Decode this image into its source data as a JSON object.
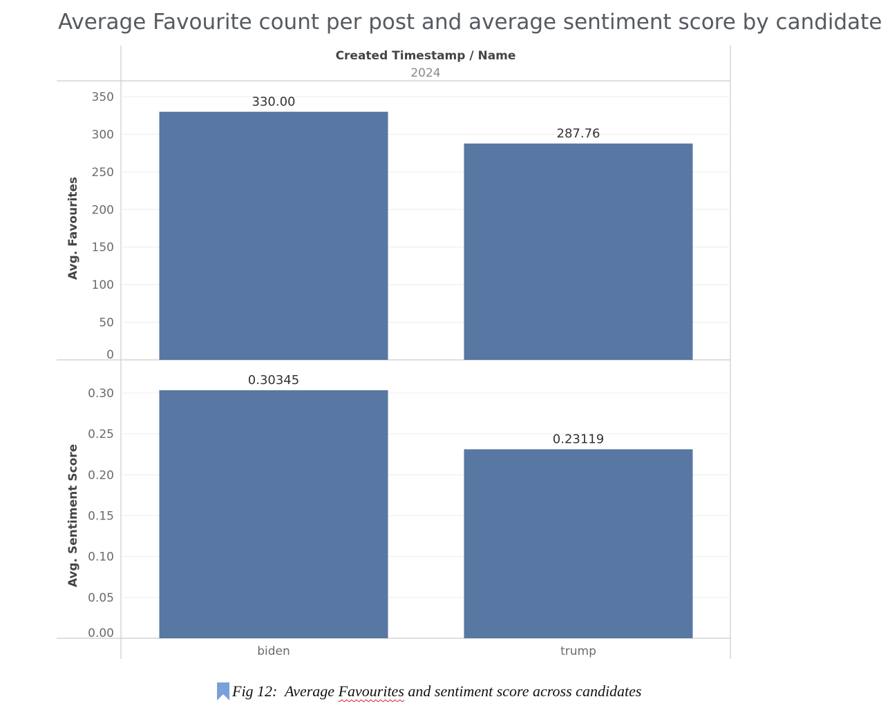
{
  "title": "Average Favourite count per post and average sentiment score by candidate",
  "header": {
    "line1": "Created Timestamp / Name",
    "line2": "2024"
  },
  "caption": {
    "prefix": "Fig 12:  Average ",
    "misspelled": "Favourites",
    "suffix": " and sentiment score across candidates"
  },
  "colors": {
    "bar": "#5877a2",
    "grid": "#ececec",
    "axis_line": "#cccccc",
    "tick_text": "#6b6b6b"
  },
  "chart_data": [
    {
      "type": "bar",
      "title": "Average Favourite count per post and average sentiment score by candidate",
      "categories": [
        "biden",
        "trump"
      ],
      "values": [
        330.0,
        287.76
      ],
      "value_labels": [
        "330.00",
        "287.76"
      ],
      "ylabel": "Avg. Favourites",
      "ylim": [
        0,
        350
      ],
      "yticks": [
        0,
        50,
        100,
        150,
        200,
        250,
        300,
        350
      ],
      "ytick_labels": [
        "0",
        "50",
        "100",
        "150",
        "200",
        "250",
        "300",
        "350"
      ],
      "grid": true
    },
    {
      "type": "bar",
      "title": "Average Favourite count per post and average sentiment score by candidate",
      "categories": [
        "biden",
        "trump"
      ],
      "values": [
        0.30345,
        0.23119
      ],
      "value_labels": [
        "0.30345",
        "0.23119"
      ],
      "ylabel": "Avg. Sentiment Score",
      "ylim": [
        0,
        0.3
      ],
      "yticks": [
        0.0,
        0.05,
        0.1,
        0.15,
        0.2,
        0.25,
        0.3
      ],
      "ytick_labels": [
        "0.00",
        "0.05",
        "0.10",
        "0.15",
        "0.20",
        "0.25",
        "0.30"
      ],
      "grid": true
    }
  ]
}
